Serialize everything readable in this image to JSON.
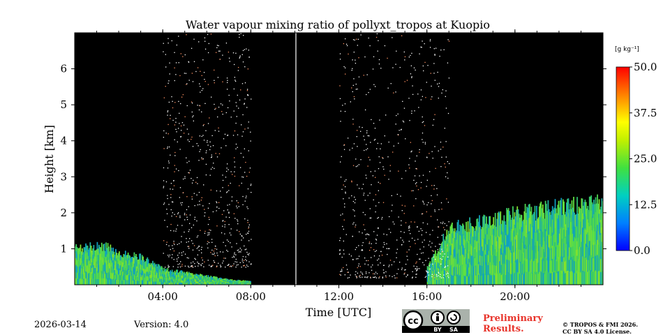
{
  "chart_data": {
    "type": "heatmap",
    "title": "Water vapour mixing ratio of pollyxt_tropos at Kuopio",
    "xlabel": "Time [UTC]",
    "ylabel": "Height [km]",
    "xlim": [
      0,
      24
    ],
    "ylim": [
      0,
      7
    ],
    "x_ticks": [
      {
        "value": 4,
        "label": "04:00"
      },
      {
        "value": 8,
        "label": "08:00"
      },
      {
        "value": 12,
        "label": "12:00"
      },
      {
        "value": 16,
        "label": "16:00"
      },
      {
        "value": 20,
        "label": "20:00"
      }
    ],
    "y_ticks": [
      {
        "value": 1,
        "label": "1"
      },
      {
        "value": 2,
        "label": "2"
      },
      {
        "value": 3,
        "label": "3"
      },
      {
        "value": 4,
        "label": "4"
      },
      {
        "value": 5,
        "label": "5"
      },
      {
        "value": 6,
        "label": "6"
      }
    ],
    "colorbar": {
      "unit_label": "[g kg⁻¹]",
      "range": [
        0,
        50
      ],
      "ticks": [
        {
          "value": 0,
          "label": "0.0"
        },
        {
          "value": 12.5,
          "label": "12.5"
        },
        {
          "value": 25,
          "label": "25.0"
        },
        {
          "value": 37.5,
          "label": "37.5"
        },
        {
          "value": 50,
          "label": "50.0"
        }
      ]
    },
    "no_data_intervals": [
      [
        8.05,
        12.0
      ]
    ],
    "marker_line_time": 10.05,
    "layers": [
      {
        "name": "morning-boundary-layer",
        "time_range": [
          0,
          8.0
        ],
        "top_km": [
          [
            0,
            1.05
          ],
          [
            1.5,
            1.1
          ],
          [
            2.0,
            0.9
          ],
          [
            3.0,
            0.8
          ],
          [
            4.0,
            0.45
          ],
          [
            5.5,
            0.3
          ],
          [
            7.0,
            0.15
          ],
          [
            8.0,
            0.1
          ]
        ],
        "value_range": [
          12,
          25
        ]
      },
      {
        "name": "afternoon-boundary-layer",
        "time_range": [
          16.0,
          24.0
        ],
        "top_km": [
          [
            16.0,
            0.5
          ],
          [
            17.0,
            1.6
          ],
          [
            18.5,
            1.8
          ],
          [
            20.0,
            2.0
          ],
          [
            22.0,
            2.2
          ],
          [
            24.0,
            2.3
          ]
        ],
        "value_range": [
          12,
          30
        ]
      },
      {
        "name": "noisy-high-altitude-signal",
        "time_range": [
          4.0,
          8.0
        ],
        "height_range_km": [
          0.5,
          7.0
        ]
      },
      {
        "name": "noisy-high-altitude-signal-2",
        "time_range": [
          12.0,
          17.0
        ],
        "height_range_km": [
          0.2,
          7.0
        ]
      }
    ]
  },
  "footer": {
    "date": "2026-03-14",
    "version": "Version: 4.0",
    "preliminary_line1": "Preliminary",
    "preliminary_line2": "Results.",
    "copyright_line1": "© TROPOS & FMI 2026.",
    "copyright_line2": "CC BY SA 4.0 License.",
    "license_by": "BY",
    "license_sa": "SA",
    "license_cc": "cc"
  }
}
